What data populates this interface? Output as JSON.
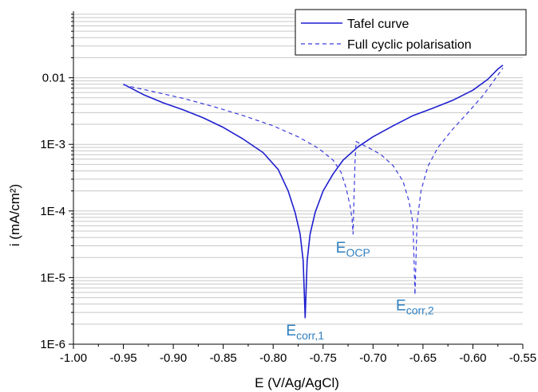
{
  "chart_data": {
    "type": "line",
    "title": "",
    "xlabel": "E (V/Ag/AgCl)",
    "ylabel": "i (mA/cm²)",
    "xlim": [
      -1.0,
      -0.55
    ],
    "ylim": [
      1e-06,
      0.1
    ],
    "y_scale": "log",
    "grid": true,
    "legend_position": "top-right",
    "x_ticks": [
      "-1.00",
      "-0.95",
      "-0.90",
      "-0.85",
      "-0.80",
      "-0.75",
      "-0.70",
      "-0.65",
      "-0.60",
      "-0.55"
    ],
    "y_ticks": [
      "1E-6",
      "1E-5",
      "1E-4",
      "1E-3",
      "0.01"
    ],
    "series": [
      {
        "name": "Tafel curve",
        "style": "solid",
        "color": "#1f1fd0",
        "points": [
          [
            -0.95,
            0.008
          ],
          [
            -0.93,
            0.0056
          ],
          [
            -0.91,
            0.0042
          ],
          [
            -0.89,
            0.0033
          ],
          [
            -0.87,
            0.0025
          ],
          [
            -0.85,
            0.0018
          ],
          [
            -0.83,
            0.0012
          ],
          [
            -0.81,
            0.00075
          ],
          [
            -0.795,
            0.00042
          ],
          [
            -0.785,
            0.0002
          ],
          [
            -0.778,
            9.5e-05
          ],
          [
            -0.773,
            4.5e-05
          ],
          [
            -0.77,
            1.8e-05
          ],
          [
            -0.768,
            2.5e-06
          ],
          [
            -0.766,
            1.8e-05
          ],
          [
            -0.763,
            4.5e-05
          ],
          [
            -0.758,
            9.5e-05
          ],
          [
            -0.75,
            0.0002
          ],
          [
            -0.74,
            0.00036
          ],
          [
            -0.73,
            0.00058
          ],
          [
            -0.715,
            0.00092
          ],
          [
            -0.7,
            0.0013
          ],
          [
            -0.68,
            0.0019
          ],
          [
            -0.66,
            0.0027
          ],
          [
            -0.64,
            0.0035
          ],
          [
            -0.62,
            0.0046
          ],
          [
            -0.6,
            0.0065
          ],
          [
            -0.585,
            0.0095
          ],
          [
            -0.575,
            0.0135
          ],
          [
            -0.57,
            0.0155
          ]
        ]
      },
      {
        "name": "Full cyclic polarisation",
        "style": "dashed",
        "color": "#3a3ae0",
        "points": [
          [
            -0.95,
            0.0078
          ],
          [
            -0.92,
            0.0062
          ],
          [
            -0.89,
            0.0049
          ],
          [
            -0.86,
            0.0037
          ],
          [
            -0.83,
            0.0027
          ],
          [
            -0.8,
            0.0019
          ],
          [
            -0.775,
            0.0013
          ],
          [
            -0.755,
            0.00088
          ],
          [
            -0.74,
            0.00058
          ],
          [
            -0.732,
            0.00038
          ],
          [
            -0.727,
            0.00022
          ],
          [
            -0.723,
            0.00012
          ],
          [
            -0.721,
            7.5e-05
          ],
          [
            -0.72,
            4.5e-05
          ],
          [
            -0.719,
            0.00018
          ],
          [
            -0.718,
            0.00055
          ],
          [
            -0.717,
            0.0011
          ],
          [
            -0.705,
            0.0009
          ],
          [
            -0.692,
            0.0007
          ],
          [
            -0.68,
            0.00048
          ],
          [
            -0.67,
            0.00028
          ],
          [
            -0.664,
            0.00014
          ],
          [
            -0.66,
            6.5e-05
          ],
          [
            -0.658,
            5.5e-06
          ],
          [
            -0.656,
            6.5e-05
          ],
          [
            -0.652,
            0.0002
          ],
          [
            -0.645,
            0.00047
          ],
          [
            -0.635,
            0.0009
          ],
          [
            -0.62,
            0.0017
          ],
          [
            -0.605,
            0.003
          ],
          [
            -0.59,
            0.0054
          ],
          [
            -0.578,
            0.0095
          ],
          [
            -0.57,
            0.014
          ]
        ]
      }
    ],
    "annotations": [
      {
        "base": "E",
        "sub": "corr,1",
        "x": -0.768,
        "y": 1.6e-06
      },
      {
        "base": "E",
        "sub": "OCP",
        "x": -0.72,
        "y": 2.8e-05
      },
      {
        "base": "E",
        "sub": "corr,2",
        "x": -0.658,
        "y": 3.8e-06
      }
    ]
  }
}
